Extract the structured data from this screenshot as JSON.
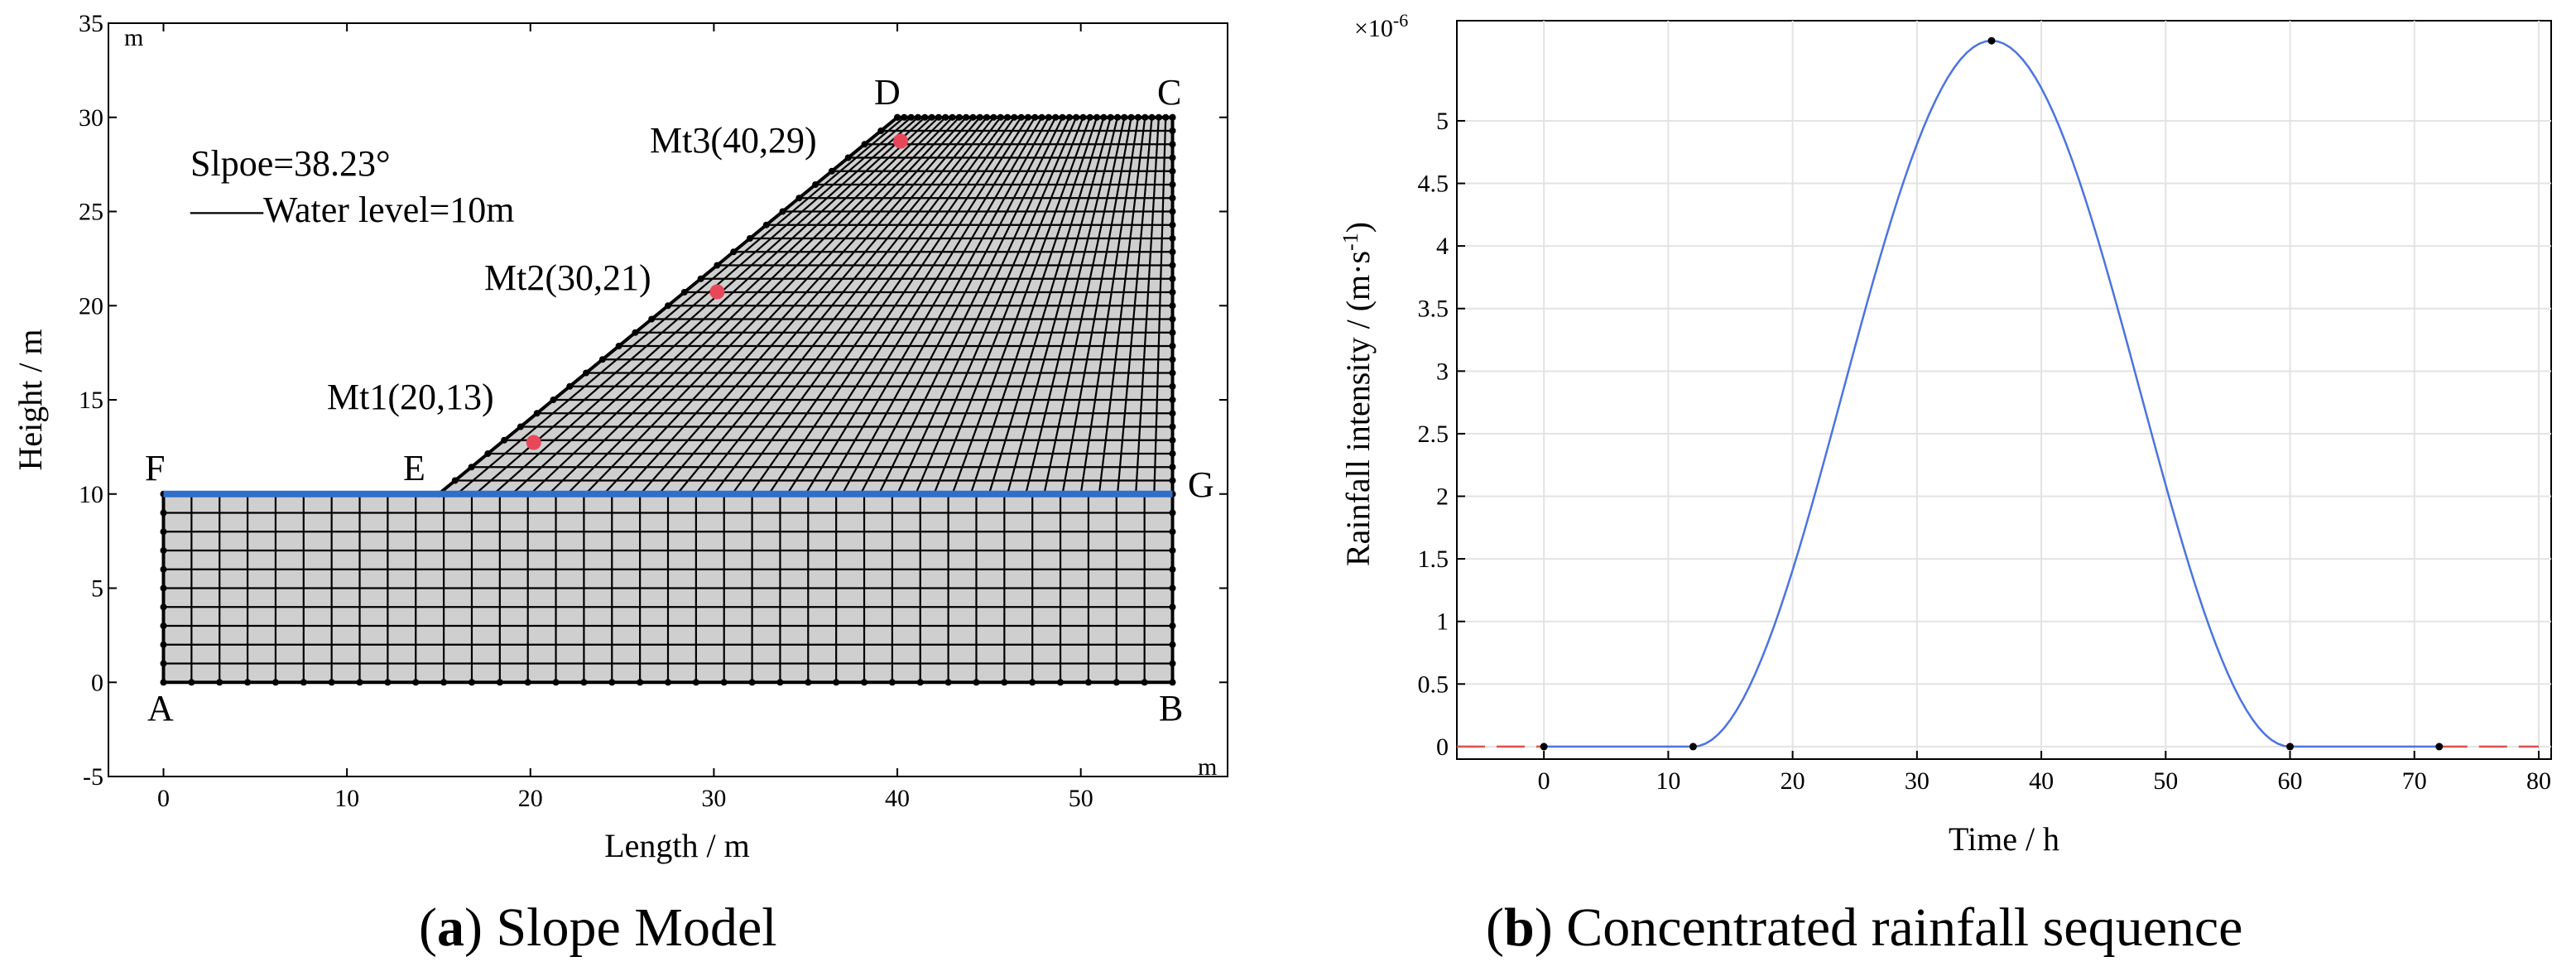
{
  "panel_a": {
    "caption_letter": "a",
    "caption_text": " Slope Model",
    "x_label": "Length / m",
    "y_label": "Height / m",
    "x_unit": "m",
    "y_unit": "m",
    "slope_text": "Slpoe=38.23°",
    "water_legend_text": "——Water level=10m",
    "water_color": "#2f6fc9",
    "monitor_color": "#e8475a",
    "mesh_fill": "#cfcfcf",
    "points": {
      "A": {
        "label": "A",
        "x": 0,
        "y": 0
      },
      "B": {
        "label": "B",
        "x": 55,
        "y": 0
      },
      "C": {
        "label": "C",
        "x": 55,
        "y": 30
      },
      "D": {
        "label": "D",
        "x": 40,
        "y": 30
      },
      "E": {
        "label": "E",
        "x": 15,
        "y": 10
      },
      "F": {
        "label": "F",
        "x": 0,
        "y": 10
      },
      "G": {
        "label": "G",
        "x": 55,
        "y": 10
      }
    },
    "monitors": [
      {
        "label": "Mt1(20,13)",
        "x": 20,
        "y": 13
      },
      {
        "label": "Mt2(30,21)",
        "x": 30,
        "y": 21
      },
      {
        "label": "Mt3(40,29)",
        "x": 40,
        "y": 29
      }
    ]
  },
  "panel_b": {
    "caption_letter": "b",
    "caption_text": " Concentrated rainfall sequence",
    "x_label": "Time / h",
    "y_label": "Rainfall intensity / (m·s",
    "y_label_sup": "-1",
    "y_label_end": ")",
    "multiplier_base": "×10",
    "multiplier_exp": "-6"
  },
  "chart_data": [
    {
      "type": "area",
      "title": "Slope Model",
      "xlabel": "Length / m",
      "ylabel": "Height / m",
      "xlim": [
        -3,
        58
      ],
      "ylim": [
        -5,
        35
      ],
      "xticks": [
        0,
        10,
        20,
        30,
        40,
        50
      ],
      "yticks": [
        -5,
        0,
        5,
        10,
        15,
        20,
        25,
        30,
        35
      ],
      "slope_angle_deg": 38.23,
      "water_level_m": 10,
      "geometry": {
        "x": [
          0,
          55,
          55,
          40,
          15,
          0
        ],
        "y": [
          0,
          0,
          30,
          30,
          10,
          10
        ]
      },
      "monitoring_points": [
        {
          "name": "Mt1",
          "x": 20,
          "y": 13
        },
        {
          "name": "Mt2",
          "x": 30,
          "y": 21
        },
        {
          "name": "Mt3",
          "x": 40,
          "y": 29
        }
      ]
    },
    {
      "type": "line",
      "title": "Concentrated rainfall sequence",
      "xlabel": "Time / h",
      "ylabel": "Rainfall intensity / (m·s-1)",
      "y_multiplier": "1e-6",
      "xlim": [
        -7,
        81
      ],
      "ylim": [
        -0.1,
        5.8
      ],
      "xticks": [
        0,
        10,
        20,
        30,
        40,
        50,
        60,
        70,
        80
      ],
      "yticks": [
        0,
        0.5,
        1,
        1.5,
        2,
        2.5,
        3,
        3.5,
        4,
        4.5,
        5
      ],
      "grid": true,
      "series": [
        {
          "name": "rainfall intensity",
          "color": "#4b74e0",
          "x": [
            0,
            12,
            16,
            20,
            24,
            28,
            32,
            36,
            40,
            44,
            48,
            52,
            56,
            60,
            72
          ],
          "y": [
            0,
            0,
            0.38,
            1.41,
            2.82,
            4.23,
            5.26,
            5.64,
            5.26,
            4.23,
            2.82,
            1.41,
            0.38,
            0,
            0
          ]
        },
        {
          "name": "extrapolation",
          "color": "#e05050",
          "style": "dashed",
          "x": [
            -7,
            0,
            72,
            80
          ],
          "y": [
            0,
            0,
            0,
            0
          ]
        }
      ],
      "markers": [
        {
          "x": 0,
          "y": 0
        },
        {
          "x": 12,
          "y": 0
        },
        {
          "x": 36,
          "y": 5.64
        },
        {
          "x": 60,
          "y": 0
        },
        {
          "x": 72,
          "y": 0
        }
      ]
    }
  ]
}
